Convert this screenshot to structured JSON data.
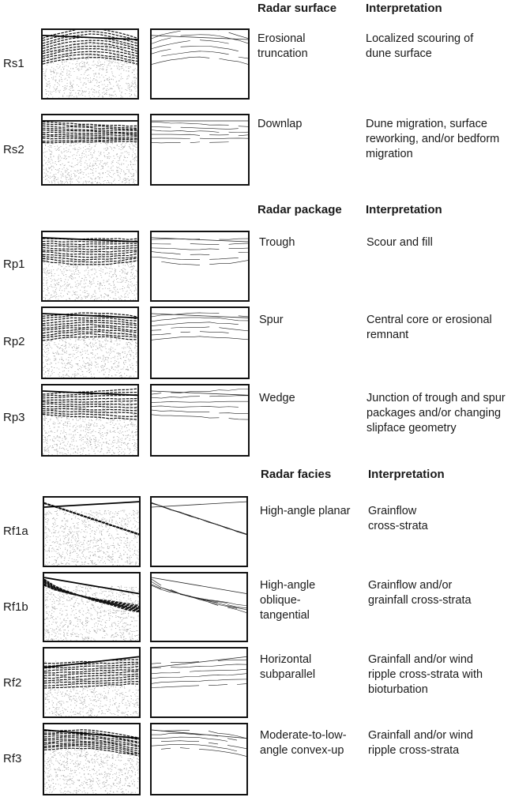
{
  "sections": [
    {
      "key": "surface",
      "header": "Radar surface",
      "interpretation_header": "Interpretation",
      "rows": [
        {
          "code": "Rs1",
          "name": "Erosional\ntruncation",
          "interpretation": "Localized scouring of\ndune surface",
          "pattern": "arch"
        },
        {
          "code": "Rs2",
          "name": "Downlap",
          "interpretation": "Dune migration, surface\nreworking, and/or bedform\nmigration",
          "pattern": "downlap"
        }
      ]
    },
    {
      "key": "package",
      "header": "Radar package",
      "interpretation_header": "Interpretation",
      "rows": [
        {
          "code": "Rp1",
          "name": "Trough",
          "interpretation": "Scour and fill",
          "pattern": "trough"
        },
        {
          "code": "Rp2",
          "name": "Spur",
          "interpretation": "Central core or erosional\nremnant",
          "pattern": "spur"
        },
        {
          "code": "Rp3",
          "name": "Wedge",
          "interpretation": "Junction of trough and spur\npackages and/or changing\nslipface geometry",
          "pattern": "wedge"
        }
      ]
    },
    {
      "key": "facies",
      "header": "Radar facies",
      "interpretation_header": "Interpretation",
      "rows": [
        {
          "code": "Rf1a",
          "name": "High-angle planar",
          "interpretation": "Grainflow\ncross-strata",
          "pattern": "planar"
        },
        {
          "code": "Rf1b",
          "name": "High-angle\noblique-\ntangential",
          "interpretation": "Grainflow and/or\ngrainfall cross-strata",
          "pattern": "tangential"
        },
        {
          "code": "Rf2",
          "name": "Horizontal\nsubparallel",
          "interpretation": "Grainfall and/or wind\nripple cross-strata with\nbioturbation",
          "pattern": "subparallel"
        },
        {
          "code": "Rf3",
          "name": "Moderate-to-low-\nangle convex-up",
          "interpretation": "Grainfall and/or wind\nripple cross-strata",
          "pattern": "convex"
        }
      ]
    }
  ]
}
